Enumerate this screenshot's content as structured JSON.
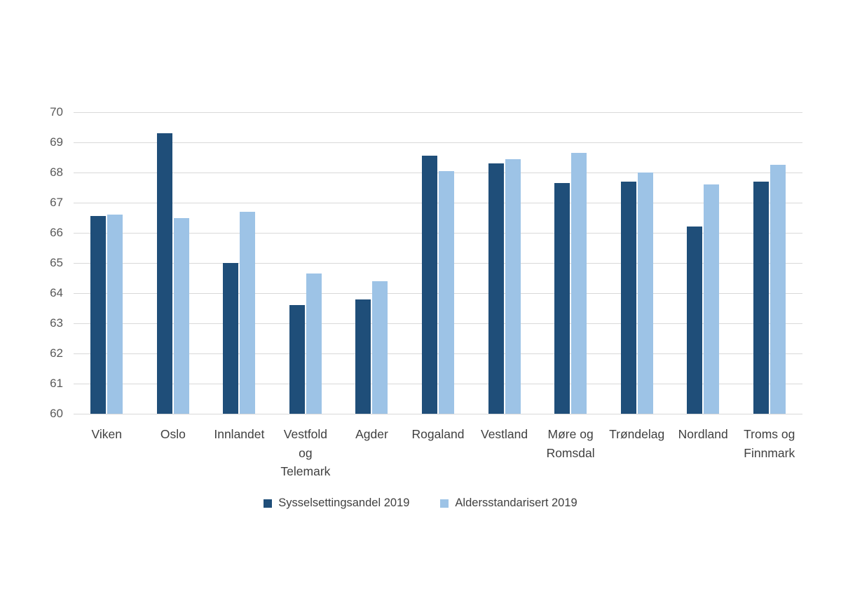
{
  "chart_data": {
    "type": "bar",
    "title": "",
    "xlabel": "",
    "ylabel": "",
    "ylim": [
      60,
      70
    ],
    "ytick_step": 1,
    "grid": true,
    "legend_position": "bottom",
    "categories": [
      "Viken",
      "Oslo",
      "Innlandet",
      "Vestfold og Telemark",
      "Agder",
      "Rogaland",
      "Vestland",
      "Møre og Romsdal",
      "Trøndelag",
      "Nordland",
      "Troms og Finnmark"
    ],
    "category_display_labels": [
      "Viken",
      "Oslo",
      "Innlandet",
      "Vestfold\nog\nTelemark",
      "Agder",
      "Rogaland",
      "Vestland",
      "Møre og\nRomsdal",
      "Trøndelag",
      "Nordland",
      "Troms og\nFinnmark"
    ],
    "series": [
      {
        "name": "Sysselsettingsandel 2019",
        "color": "#1F4E79",
        "values": [
          66.55,
          69.3,
          65.0,
          63.6,
          63.8,
          68.55,
          68.3,
          67.65,
          67.7,
          66.2,
          67.7
        ]
      },
      {
        "name": "Aldersstandarisert 2019",
        "color": "#9DC3E6",
        "values": [
          66.6,
          66.5,
          66.7,
          64.65,
          64.4,
          68.05,
          68.45,
          68.65,
          68.0,
          67.6,
          68.25
        ]
      }
    ],
    "colors": {
      "gridline": "#d9d9d9",
      "y_tick_text": "#595959",
      "x_label_text": "#404040",
      "legend_text": "#404040",
      "background": "#ffffff"
    }
  }
}
